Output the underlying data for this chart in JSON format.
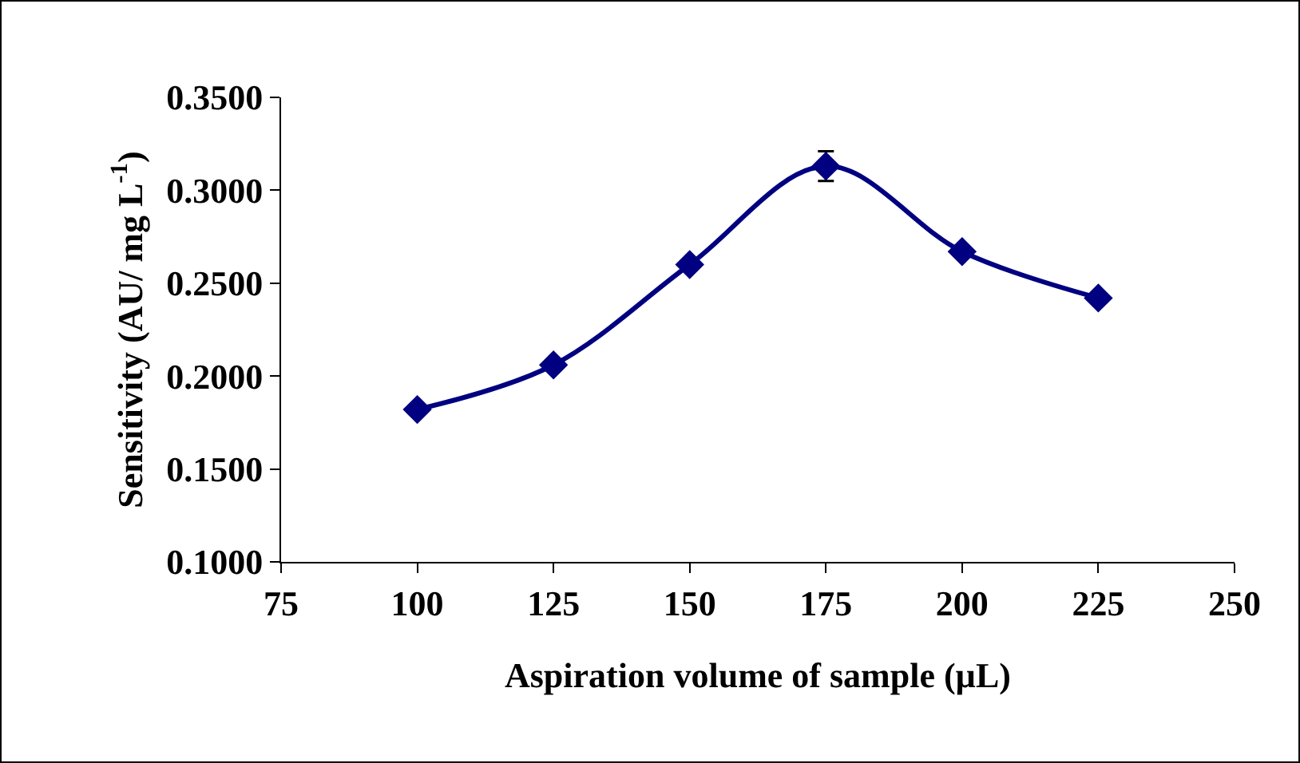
{
  "chart_data": {
    "type": "line",
    "xlabel": "Aspiration volume of sample (µL)",
    "ylabel": "Sensitivity (AU/ mg L$^{-1}$)",
    "x": [
      100,
      125,
      150,
      175,
      200,
      225
    ],
    "series": [
      {
        "color": "#000080",
        "values": [
          0.182,
          0.206,
          0.26,
          0.313,
          0.267,
          0.242
        ],
        "errors": [
          null,
          null,
          null,
          0.008,
          null,
          null
        ]
      }
    ],
    "xlim": [
      75,
      250
    ],
    "xticks": [
      75,
      100,
      125,
      150,
      175,
      200,
      225,
      250
    ],
    "ylim": [
      0.1,
      0.35
    ],
    "yticks": [
      {
        "value": 0.1,
        "label": "0.1000"
      },
      {
        "value": 0.15,
        "label": "0.1500"
      },
      {
        "value": 0.2,
        "label": "0.2000"
      },
      {
        "value": 0.25,
        "label": "0.2500"
      },
      {
        "value": 0.3,
        "label": "0.3000"
      },
      {
        "value": 0.35,
        "label": "0.3500"
      }
    ],
    "grid": false,
    "marker": "diamond",
    "line_style": "solid"
  }
}
